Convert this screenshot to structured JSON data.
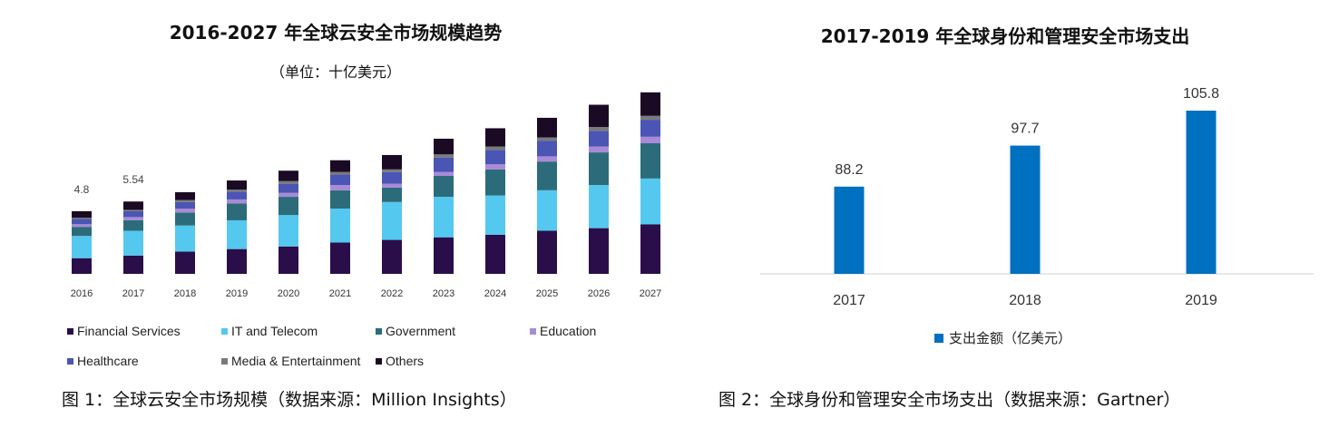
{
  "left": {
    "title": "2016-2027 年全球云安全市场规模趋势",
    "subtitle": "（单位：十亿美元）",
    "caption": "图 1：全球云安全市场规模（数据来源：Million Insights）",
    "chart_data": {
      "type": "bar",
      "stacked": true,
      "categories": [
        "2016",
        "2017",
        "2018",
        "2019",
        "2020",
        "2021",
        "2022",
        "2023",
        "2024",
        "2025",
        "2026",
        "2027"
      ],
      "series": [
        {
          "name": "Financial Services",
          "color": "#2a0e4a",
          "values": [
            1.2,
            1.4,
            1.7,
            1.9,
            2.1,
            2.4,
            2.6,
            2.8,
            3.0,
            3.3,
            3.5,
            3.8
          ]
        },
        {
          "name": "IT and Telecom",
          "color": "#55c8f0",
          "values": [
            1.7,
            1.9,
            2.0,
            2.2,
            2.4,
            2.6,
            2.9,
            3.1,
            3.0,
            3.1,
            3.3,
            3.5
          ]
        },
        {
          "name": "Government",
          "color": "#2c6c7a",
          "values": [
            0.7,
            0.8,
            1.0,
            1.3,
            1.4,
            1.4,
            1.1,
            1.6,
            2.0,
            2.2,
            2.5,
            2.7
          ]
        },
        {
          "name": "Education",
          "color": "#a98ad6",
          "values": [
            0.2,
            0.25,
            0.3,
            0.3,
            0.3,
            0.4,
            0.3,
            0.3,
            0.4,
            0.4,
            0.45,
            0.5
          ]
        },
        {
          "name": "Healthcare",
          "color": "#4a55b4",
          "values": [
            0.4,
            0.45,
            0.5,
            0.6,
            0.7,
            0.8,
            0.9,
            1.1,
            1.1,
            1.2,
            1.2,
            1.3
          ]
        },
        {
          "name": "Media & Entertainment",
          "color": "#7a7a7a",
          "values": [
            0.1,
            0.1,
            0.15,
            0.15,
            0.2,
            0.2,
            0.2,
            0.25,
            0.25,
            0.25,
            0.3,
            0.3
          ]
        },
        {
          "name": "Others",
          "color": "#1a0a24",
          "values": [
            0.5,
            0.64,
            0.6,
            0.7,
            0.8,
            0.9,
            1.1,
            1.2,
            1.4,
            1.5,
            1.7,
            1.8
          ]
        }
      ],
      "data_labels": {
        "2016": "4.8",
        "2017": "5.54"
      },
      "ylim": [
        0,
        15
      ],
      "grid": false,
      "legend_position": "bottom"
    }
  },
  "right": {
    "title": "2017-2019 年全球身份和管理安全市场支出",
    "caption": "图 2：全球身份和管理安全市场支出（数据来源：Gartner）",
    "chart_data": {
      "type": "bar",
      "categories": [
        "2017",
        "2018",
        "2019"
      ],
      "series": [
        {
          "name": "支出金额（亿美元）",
          "color": "#0070c0",
          "values": [
            88.2,
            97.7,
            105.8
          ]
        }
      ],
      "value_labels": [
        "88.2",
        "97.7",
        "105.8"
      ],
      "ylim": [
        68,
        110
      ],
      "grid": false,
      "legend_position": "bottom"
    }
  }
}
